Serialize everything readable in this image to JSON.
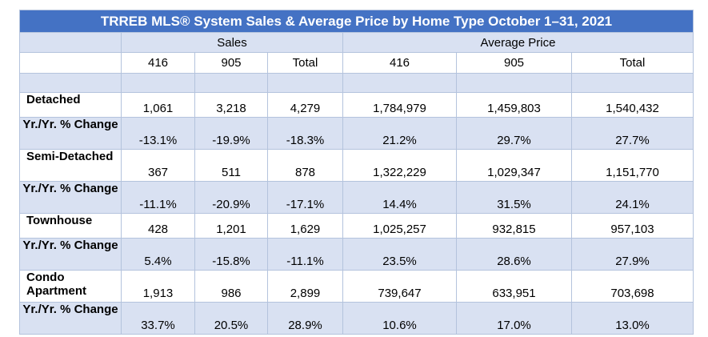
{
  "title": "TRREB MLS® System Sales & Average Price by Home Type October 1–31, 2021",
  "groups": {
    "sales": "Sales",
    "avg_price": "Average Price"
  },
  "subheaders": [
    "416",
    "905",
    "Total",
    "416",
    "905",
    "Total"
  ],
  "rows": [
    {
      "label": "Detached",
      "values": [
        "1,061",
        "3,218",
        "4,279",
        "1,784,979",
        "1,459,803",
        "1,540,432"
      ]
    },
    {
      "label": "Yr./Yr. % Change",
      "values": [
        "-13.1%",
        "-19.9%",
        "-18.3%",
        "21.2%",
        "29.7%",
        "27.7%"
      ]
    },
    {
      "label": "Semi-Detached",
      "values": [
        "367",
        "511",
        "878",
        "1,322,229",
        "1,029,347",
        "1,151,770"
      ]
    },
    {
      "label": "Yr./Yr. % Change",
      "values": [
        "-11.1%",
        "-20.9%",
        "-17.1%",
        "14.4%",
        "31.5%",
        "24.1%"
      ]
    },
    {
      "label": "Townhouse",
      "values": [
        "428",
        "1,201",
        "1,629",
        "1,025,257",
        "932,815",
        "957,103"
      ]
    },
    {
      "label": "Yr./Yr. % Change",
      "values": [
        "5.4%",
        "-15.8%",
        "-11.1%",
        "23.5%",
        "28.6%",
        "27.9%"
      ]
    },
    {
      "label": "Condo Apartment",
      "values": [
        "1,913",
        "986",
        "2,899",
        "739,647",
        "633,951",
        "703,698"
      ]
    },
    {
      "label": "Yr./Yr. % Change",
      "values": [
        "33.7%",
        "20.5%",
        "28.9%",
        "10.6%",
        "17.0%",
        "13.0%"
      ]
    }
  ]
}
